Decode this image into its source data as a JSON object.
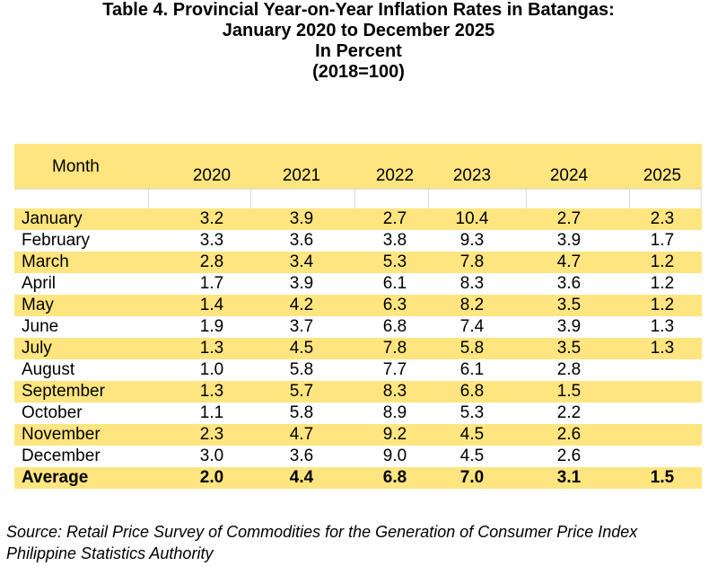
{
  "title": {
    "line1": "Table 4. Provincial Year-on-Year Inflation Rates in Batangas:",
    "line2": "January 2020 to December 2025",
    "line3": "In Percent",
    "line4": "(2018=100)"
  },
  "chart_data": {
    "type": "table",
    "header": [
      "Month",
      "2020",
      "2021",
      "2022",
      "2023",
      "2024",
      "2025"
    ],
    "rows": [
      [
        "January",
        "3.2",
        "3.9",
        "2.7",
        "10.4",
        "2.7",
        "2.3"
      ],
      [
        "February",
        "3.3",
        "3.6",
        "3.8",
        "9.3",
        "3.9",
        "1.7"
      ],
      [
        "March",
        "2.8",
        "3.4",
        "5.3",
        "7.8",
        "4.7",
        "1.2"
      ],
      [
        "April",
        "1.7",
        "3.9",
        "6.1",
        "8.3",
        "3.6",
        "1.2"
      ],
      [
        "May",
        "1.4",
        "4.2",
        "6.3",
        "8.2",
        "3.5",
        "1.2"
      ],
      [
        "June",
        "1.9",
        "3.7",
        "6.8",
        "7.4",
        "3.9",
        "1.3"
      ],
      [
        "July",
        "1.3",
        "4.5",
        "7.8",
        "5.8",
        "3.5",
        "1.3"
      ],
      [
        "August",
        "1.0",
        "5.8",
        "7.7",
        "6.1",
        "2.8",
        ""
      ],
      [
        "September",
        "1.3",
        "5.7",
        "8.3",
        "6.8",
        "1.5",
        ""
      ],
      [
        "October",
        "1.1",
        "5.8",
        "8.9",
        "5.3",
        "2.2",
        ""
      ],
      [
        "November",
        "2.3",
        "4.7",
        "9.2",
        "4.5",
        "2.6",
        ""
      ],
      [
        "December",
        "3.0",
        "3.6",
        "9.0",
        "4.5",
        "2.6",
        ""
      ]
    ],
    "average": [
      "Average",
      "2.0",
      "4.4",
      "6.8",
      "7.0",
      "3.1",
      "1.5"
    ]
  },
  "colors": {
    "band": "#FFE57F",
    "row_alt": "#FFFFFF",
    "grid": "#D9D9D9"
  },
  "source": {
    "line1": "Source: Retail Price Survey of Commodities for the Generation of Consumer Price Index",
    "line2": "Philippine Statistics Authority"
  }
}
